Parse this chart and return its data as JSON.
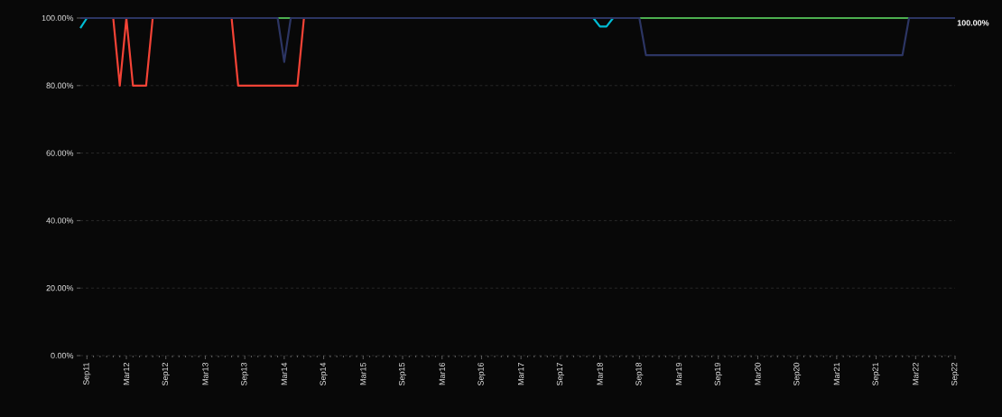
{
  "chart_data": {
    "type": "line",
    "series": [
      {
        "color": "#f44336",
        "x": [
          "2012-01",
          "2012-02",
          "2012-03",
          "2012-04",
          "2012-06",
          "2012-07",
          "2013-01",
          "2013-07",
          "2013-08",
          "2014-05",
          "2014-06"
        ],
        "values": [
          100,
          80,
          100,
          80,
          80,
          100,
          null,
          100,
          80,
          80,
          100
        ]
      },
      {
        "color": "#00bcd4",
        "x": [
          "2011-08",
          "2011-09",
          "2015-01",
          "2018-02",
          "2018-03",
          "2018-04",
          "2018-05"
        ],
        "values": [
          97,
          100,
          null,
          100,
          97.5,
          97.5,
          100
        ]
      },
      {
        "color": "#4caf50",
        "x": [
          "2014-02",
          "2014-04",
          "2016-01",
          "2018-09",
          "2022-02"
        ],
        "values": [
          100,
          100,
          null,
          100,
          100
        ]
      },
      {
        "color": "#2c3563",
        "x": [
          "2011-08",
          "2014-02",
          "2014-03",
          "2014-04",
          "2018-09",
          "2018-10",
          "2022-01",
          "2022-02",
          "2022-09"
        ],
        "values": [
          100,
          100,
          87,
          100,
          100,
          89,
          89,
          100,
          100
        ]
      }
    ],
    "xlim": [
      "2011-08",
      "2022-09"
    ],
    "xticks": [
      {
        "value": "2011-09",
        "label": "Sep11"
      },
      {
        "value": "2012-03",
        "label": "Mar12"
      },
      {
        "value": "2012-09",
        "label": "Sep12"
      },
      {
        "value": "2013-03",
        "label": "Mar13"
      },
      {
        "value": "2013-09",
        "label": "Sep13"
      },
      {
        "value": "2014-03",
        "label": "Mar14"
      },
      {
        "value": "2014-09",
        "label": "Sep14"
      },
      {
        "value": "2015-03",
        "label": "Mar15"
      },
      {
        "value": "2015-09",
        "label": "Sep15"
      },
      {
        "value": "2016-03",
        "label": "Mar16"
      },
      {
        "value": "2016-09",
        "label": "Sep16"
      },
      {
        "value": "2017-03",
        "label": "Mar17"
      },
      {
        "value": "2017-09",
        "label": "Sep17"
      },
      {
        "value": "2018-03",
        "label": "Mar18"
      },
      {
        "value": "2018-09",
        "label": "Sep18"
      },
      {
        "value": "2019-03",
        "label": "Mar19"
      },
      {
        "value": "2019-09",
        "label": "Sep19"
      },
      {
        "value": "2020-03",
        "label": "Mar20"
      },
      {
        "value": "2020-09",
        "label": "Sep20"
      },
      {
        "value": "2021-03",
        "label": "Mar21"
      },
      {
        "value": "2021-09",
        "label": "Sep21"
      },
      {
        "value": "2022-03",
        "label": "Mar22"
      },
      {
        "value": "2022-09",
        "label": "Sep22"
      }
    ],
    "ylim": [
      0,
      100
    ],
    "yticks": [
      {
        "value": 0,
        "label": "0.00%"
      },
      {
        "value": 20,
        "label": "20.00%"
      },
      {
        "value": 40,
        "label": "40.00%"
      },
      {
        "value": 60,
        "label": "60.00%"
      },
      {
        "value": 80,
        "label": "80.00%"
      },
      {
        "value": 100,
        "label": "100.00%"
      }
    ],
    "annotations": [
      {
        "text": "100.00%",
        "x": "2022-09",
        "y": 100
      }
    ],
    "grid": "y",
    "marker": "none",
    "line_style": "solid"
  }
}
